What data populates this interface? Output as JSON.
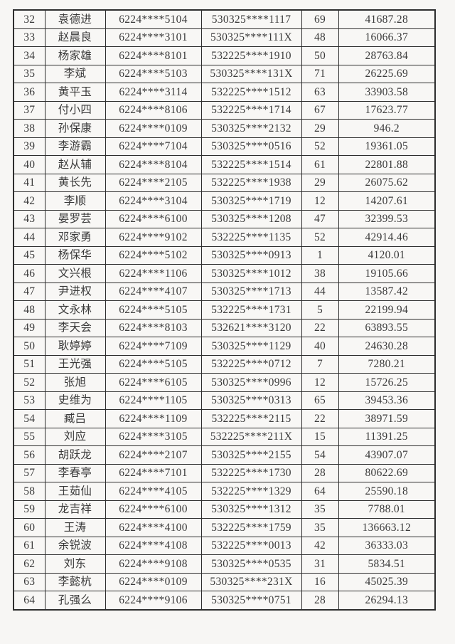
{
  "colors": {
    "page_background": "#f7f6f4",
    "table_border": "#2e2e2e",
    "text": "#3a3a3a"
  },
  "table": {
    "column_keys": [
      "index",
      "name",
      "card_number",
      "id_number",
      "count",
      "amount"
    ],
    "rows": [
      [
        "32",
        "袁德进",
        "6224****5104",
        "530325****1117",
        "69",
        "41687.28"
      ],
      [
        "33",
        "赵晨良",
        "6224****3101",
        "530325****111X",
        "48",
        "16066.37"
      ],
      [
        "34",
        "杨家雄",
        "6224****8101",
        "532225****1910",
        "50",
        "28763.84"
      ],
      [
        "35",
        "李斌",
        "6224****5103",
        "530325****131X",
        "71",
        "26225.69"
      ],
      [
        "36",
        "黄平玉",
        "6224****3114",
        "532225****1512",
        "63",
        "33903.58"
      ],
      [
        "37",
        "付小四",
        "6224****8106",
        "532225****1714",
        "67",
        "17623.77"
      ],
      [
        "38",
        "孙保康",
        "6224****0109",
        "530325****2132",
        "29",
        "946.2"
      ],
      [
        "39",
        "李游霸",
        "6224****7104",
        "530325****0516",
        "52",
        "19361.05"
      ],
      [
        "40",
        "赵从辅",
        "6224****8104",
        "532225****1514",
        "61",
        "22801.88"
      ],
      [
        "41",
        "黄长先",
        "6224****2105",
        "532225****1938",
        "29",
        "26075.62"
      ],
      [
        "42",
        "李顺",
        "6224****3104",
        "530325****1719",
        "12",
        "14207.61"
      ],
      [
        "43",
        "晏罗芸",
        "6224****6100",
        "530325****1208",
        "47",
        "32399.53"
      ],
      [
        "44",
        "邓家勇",
        "6224****9102",
        "532225****1135",
        "52",
        "42914.46"
      ],
      [
        "45",
        "杨保华",
        "6224****5102",
        "530325****0913",
        "1",
        "4120.01"
      ],
      [
        "46",
        "文兴根",
        "6224****1106",
        "530325****1012",
        "38",
        "19105.66"
      ],
      [
        "47",
        "尹进权",
        "6224****4107",
        "530325****1713",
        "44",
        "13587.42"
      ],
      [
        "48",
        "文永林",
        "6224****5105",
        "532225****1731",
        "5",
        "22199.94"
      ],
      [
        "49",
        "李天会",
        "6224****8103",
        "532621****3120",
        "22",
        "63893.55"
      ],
      [
        "50",
        "耿婷婷",
        "6224****7109",
        "530325****1129",
        "40",
        "24630.28"
      ],
      [
        "51",
        "王光强",
        "6224****5105",
        "532225****0712",
        "7",
        "7280.21"
      ],
      [
        "52",
        "张旭",
        "6224****6105",
        "530325****0996",
        "12",
        "15726.25"
      ],
      [
        "53",
        "史维为",
        "6224****1105",
        "530325****0313",
        "65",
        "39453.36"
      ],
      [
        "54",
        "臧吕",
        "6224****1109",
        "532225****2115",
        "22",
        "38971.59"
      ],
      [
        "55",
        "刘应",
        "6224****3105",
        "532225****211X",
        "15",
        "11391.25"
      ],
      [
        "56",
        "胡跃龙",
        "6224****2107",
        "530325****2155",
        "54",
        "43907.07"
      ],
      [
        "57",
        "李春亭",
        "6224****7101",
        "532225****1730",
        "28",
        "80622.69"
      ],
      [
        "58",
        "王茹仙",
        "6224****4105",
        "532225****1329",
        "64",
        "25590.18"
      ],
      [
        "59",
        "龙吉祥",
        "6224****6100",
        "530325****1312",
        "35",
        "7788.01"
      ],
      [
        "60",
        "王涛",
        "6224****4100",
        "532225****1759",
        "35",
        "136663.12"
      ],
      [
        "61",
        "余锐波",
        "6224****4108",
        "532225****0013",
        "42",
        "36333.03"
      ],
      [
        "62",
        "刘东",
        "6224****9108",
        "530325****0535",
        "31",
        "5834.51"
      ],
      [
        "63",
        "李懿杭",
        "6224****0109",
        "530325****231X",
        "16",
        "45025.39"
      ],
      [
        "64",
        "孔强么",
        "6224****9106",
        "530325****0751",
        "28",
        "26294.13"
      ]
    ]
  }
}
